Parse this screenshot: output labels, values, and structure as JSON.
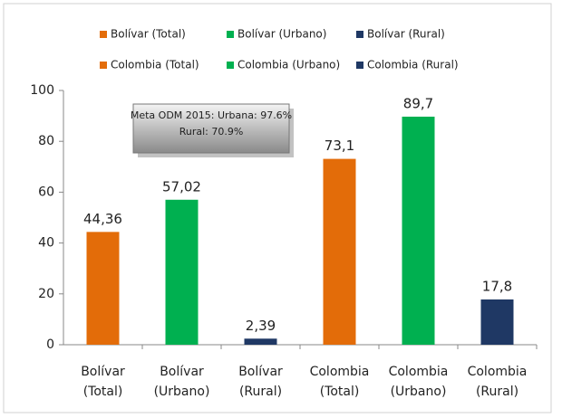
{
  "chart_data": {
    "type": "bar",
    "categories": [
      [
        "Bolívar",
        "(Total)"
      ],
      [
        "Bolívar",
        "(Urbano)"
      ],
      [
        "Bolívar",
        "(Rural)"
      ],
      [
        "Colombia",
        "(Total)"
      ],
      [
        "Colombia",
        "(Urbano)"
      ],
      [
        "Colombia",
        "(Rural)"
      ]
    ],
    "series": [
      {
        "name": "Bolívar (Total)",
        "color": "#e36c09",
        "values": [
          44.36,
          null,
          null,
          null,
          null,
          null
        ],
        "value_labels": [
          "44,36",
          null,
          null,
          null,
          null,
          null
        ]
      },
      {
        "name": "Bolívar (Urbano)",
        "color": "#00b050",
        "values": [
          null,
          57.02,
          null,
          null,
          null,
          null
        ],
        "value_labels": [
          null,
          "57,02",
          null,
          null,
          null,
          null
        ]
      },
      {
        "name": "Bolívar (Rural)",
        "color": "#1f3864",
        "values": [
          null,
          null,
          2.39,
          null,
          null,
          null
        ],
        "value_labels": [
          null,
          null,
          "2,39",
          null,
          null,
          null
        ]
      },
      {
        "name": "Colombia (Total)",
        "color": "#e36c09",
        "values": [
          null,
          null,
          null,
          73.1,
          null,
          null
        ],
        "value_labels": [
          null,
          null,
          null,
          "73,1",
          null,
          null
        ]
      },
      {
        "name": "Colombia (Urbano)",
        "color": "#00b050",
        "values": [
          null,
          null,
          null,
          null,
          89.7,
          null
        ],
        "value_labels": [
          null,
          null,
          null,
          null,
          "89,7",
          null
        ]
      },
      {
        "name": "Colombia (Rural)",
        "color": "#1f3864",
        "values": [
          null,
          null,
          null,
          null,
          null,
          17.8
        ],
        "value_labels": [
          null,
          null,
          null,
          null,
          null,
          "17,8"
        ]
      }
    ],
    "annotation": [
      "Meta ODM 2015: Urbana: 97.6%",
      "Rural: 70.9%"
    ],
    "ylim": [
      0,
      100
    ],
    "yticks": [
      0,
      20,
      40,
      60,
      80,
      100
    ],
    "grid": false,
    "legend": "top"
  }
}
